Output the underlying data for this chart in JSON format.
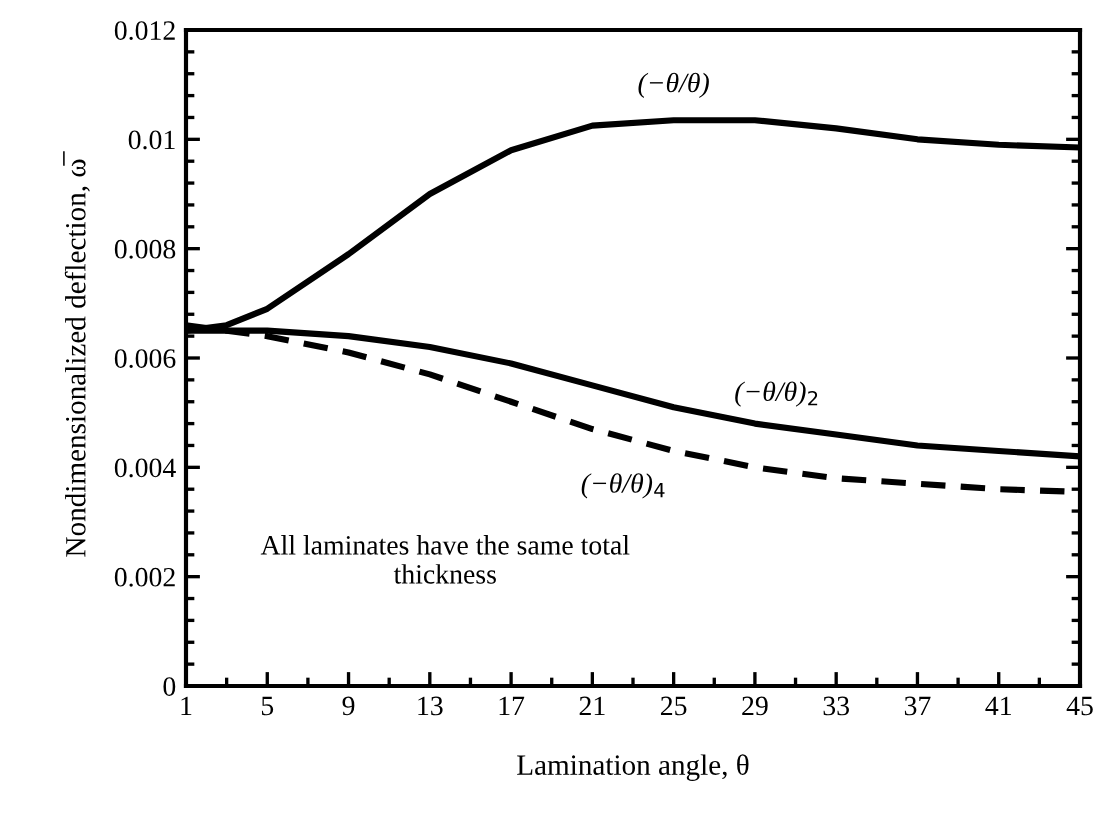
{
  "chart_data": {
    "type": "line",
    "xlabel": "Lamination angle, θ",
    "ylabel": "Nondimensionalized deflection, ω̅",
    "x": [
      1,
      3,
      5,
      9,
      13,
      17,
      21,
      25,
      29,
      33,
      37,
      41,
      45
    ],
    "series": [
      {
        "name": "(−θ/θ)",
        "color": "#000000",
        "line_style": "solid",
        "values": [
          0.0065,
          0.0066,
          0.0069,
          0.0079,
          0.009,
          0.0098,
          0.01025,
          0.01035,
          0.01035,
          0.0102,
          0.01,
          0.0099,
          0.00985
        ]
      },
      {
        "name": "(−θ/θ)$_{2}$",
        "color": "#000000",
        "line_style": "solid",
        "values": [
          0.0065,
          0.0065,
          0.0065,
          0.0064,
          0.0062,
          0.0059,
          0.0055,
          0.0051,
          0.0048,
          0.0046,
          0.0044,
          0.0043,
          0.0042
        ]
      },
      {
        "name": "(−θ/θ)$_{4}$",
        "color": "#000000",
        "line_style": "dashed",
        "values": [
          0.0066,
          0.0065,
          0.0064,
          0.0061,
          0.0057,
          0.0052,
          0.0047,
          0.0043,
          0.004,
          0.0038,
          0.0037,
          0.0036,
          0.00355
        ]
      }
    ],
    "xlim": [
      1,
      45
    ],
    "xticks": [
      1,
      {
        "value": 3,
        "label": null
      },
      5,
      {
        "value": 7,
        "label": null
      },
      9,
      {
        "value": 11,
        "label": null
      },
      13,
      {
        "value": 15,
        "label": null
      },
      17,
      {
        "value": 19,
        "label": null
      },
      21,
      {
        "value": 23,
        "label": null
      },
      25,
      {
        "value": 27,
        "label": null
      },
      29,
      {
        "value": 31,
        "label": null
      },
      33,
      {
        "value": 35,
        "label": null
      },
      37,
      {
        "value": 39,
        "label": null
      },
      41,
      {
        "value": 43,
        "label": null
      },
      45
    ],
    "ylim": [
      0,
      0.012
    ],
    "yticks": [
      0,
      {
        "value": 0.0004,
        "label": null
      },
      {
        "value": 0.0008,
        "label": null
      },
      {
        "value": 0.0012,
        "label": null
      },
      {
        "value": 0.0016,
        "label": null
      },
      0.002,
      {
        "value": 0.0024,
        "label": null
      },
      {
        "value": 0.0028,
        "label": null
      },
      {
        "value": 0.0032,
        "label": null
      },
      {
        "value": 0.0036,
        "label": null
      },
      0.004,
      {
        "value": 0.0044,
        "label": null
      },
      {
        "value": 0.0048,
        "label": null
      },
      {
        "value": 0.0052,
        "label": null
      },
      {
        "value": 0.0056,
        "label": null
      },
      0.006,
      {
        "value": 0.0064,
        "label": null
      },
      {
        "value": 0.0068,
        "label": null
      },
      {
        "value": 0.0072,
        "label": null
      },
      {
        "value": 0.0076,
        "label": null
      },
      0.008,
      {
        "value": 0.0084,
        "label": null
      },
      {
        "value": 0.0088,
        "label": null
      },
      {
        "value": 0.0092,
        "label": null
      },
      {
        "value": 0.0096,
        "label": null
      },
      0.01,
      {
        "value": 0.0104,
        "label": null
      },
      {
        "value": 0.0108,
        "label": null
      },
      {
        "value": 0.0112,
        "label": null
      },
      {
        "value": 0.0116,
        "label": null
      },
      0.012
    ],
    "annotations": [
      "All laminates have the same total\nthickness"
    ],
    "grid": false,
    "legend": false,
    "marker": "none"
  }
}
